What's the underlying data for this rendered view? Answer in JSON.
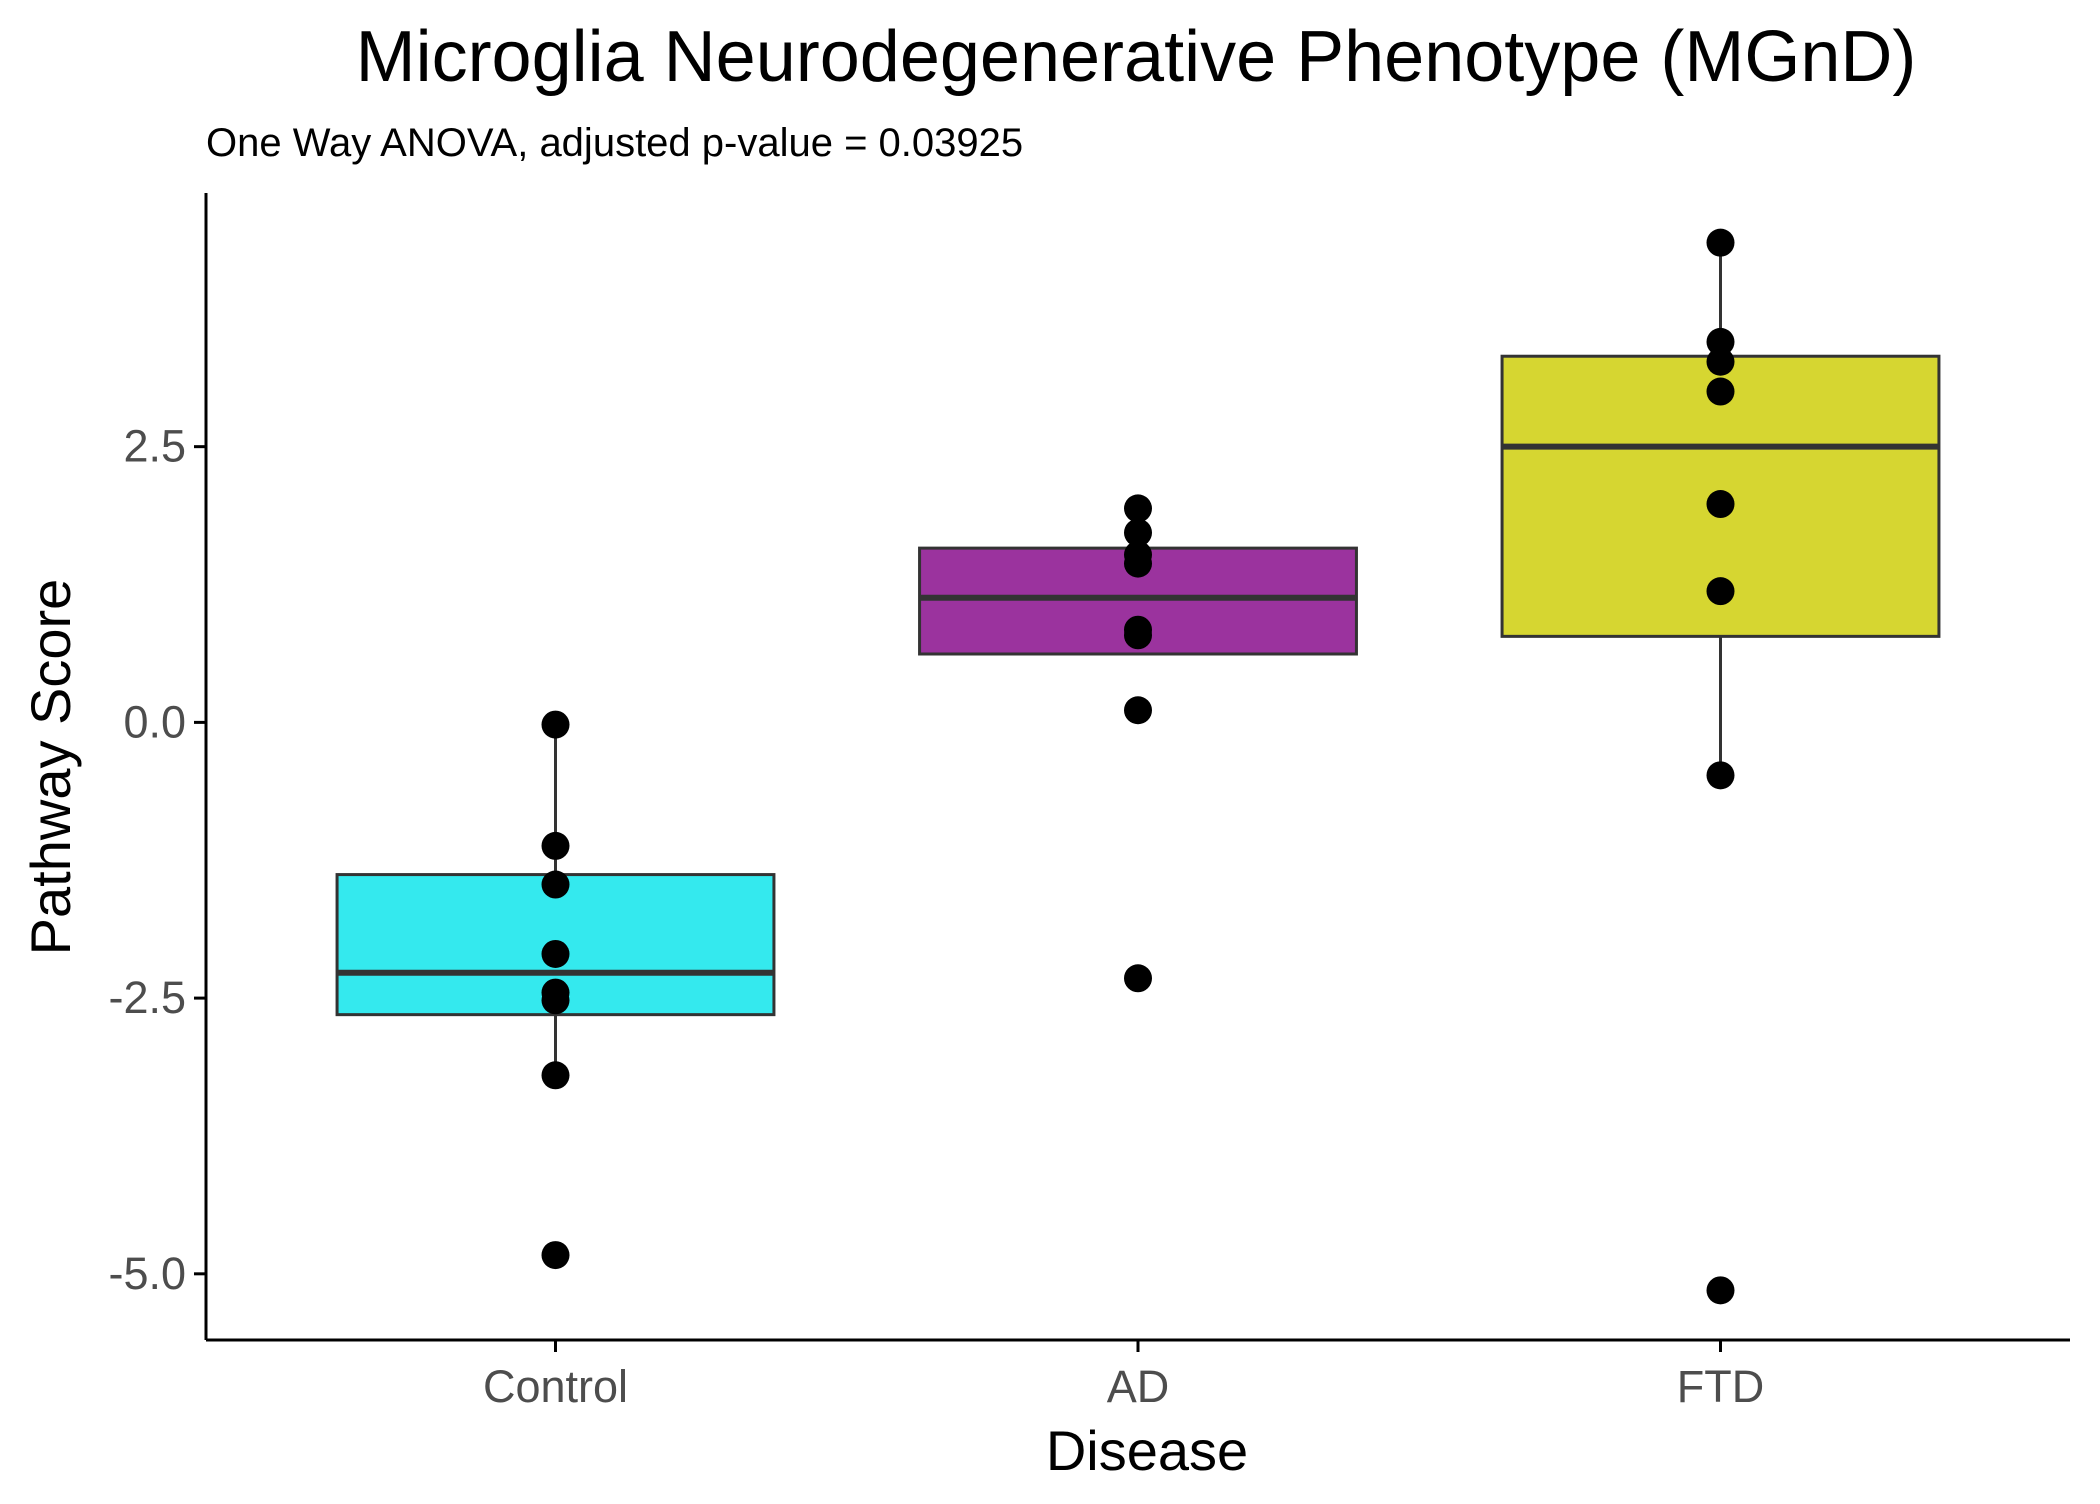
{
  "chart_data": {
    "type": "box",
    "title": "Microglia Neurodegenerative Phenotype (MGnD)",
    "subtitle": "One Way ANOVA, adjusted p-value = 0.03925",
    "xlabel": "Disease",
    "ylabel": "Pathway Score",
    "categories": [
      "Control",
      "AD",
      "FTD"
    ],
    "ylim": [
      -5.6,
      4.8
    ],
    "yticks": [
      -5.0,
      -2.5,
      0.0,
      2.5
    ],
    "ytick_labels": [
      "-5.0",
      "-2.5",
      "0.0",
      "2.5"
    ],
    "grid": false,
    "legend": "none",
    "colors": {
      "Control": "#34E9EE",
      "AD": "#9B339E",
      "FTD": "#D6D631",
      "box_outline": "#333333",
      "points": "#000000",
      "axis": "#000000",
      "tick_text": "#4D4D4D"
    },
    "boxes": [
      {
        "category": "Control",
        "whisker_low": -3.2,
        "q1": -2.65,
        "median": -2.27,
        "q3": -1.38,
        "whisker_high": -0.02
      },
      {
        "category": "AD",
        "whisker_low": 0.62,
        "q1": 0.62,
        "median": 1.13,
        "q3": 1.58,
        "whisker_high": 1.58
      },
      {
        "category": "FTD",
        "whisker_low": -0.48,
        "q1": 0.78,
        "median": 2.5,
        "q3": 3.32,
        "whisker_high": 4.35
      }
    ],
    "points": [
      {
        "category": "Control",
        "values": [
          -0.02,
          -1.12,
          -1.47,
          -2.1,
          -2.45,
          -2.52,
          -3.2,
          -4.83
        ]
      },
      {
        "category": "AD",
        "values": [
          1.94,
          1.72,
          1.52,
          1.44,
          0.84,
          0.79,
          0.11,
          -2.32
        ]
      },
      {
        "category": "FTD",
        "values": [
          4.35,
          3.45,
          3.27,
          3.0,
          1.98,
          1.19,
          -0.48,
          -5.15
        ]
      }
    ]
  }
}
